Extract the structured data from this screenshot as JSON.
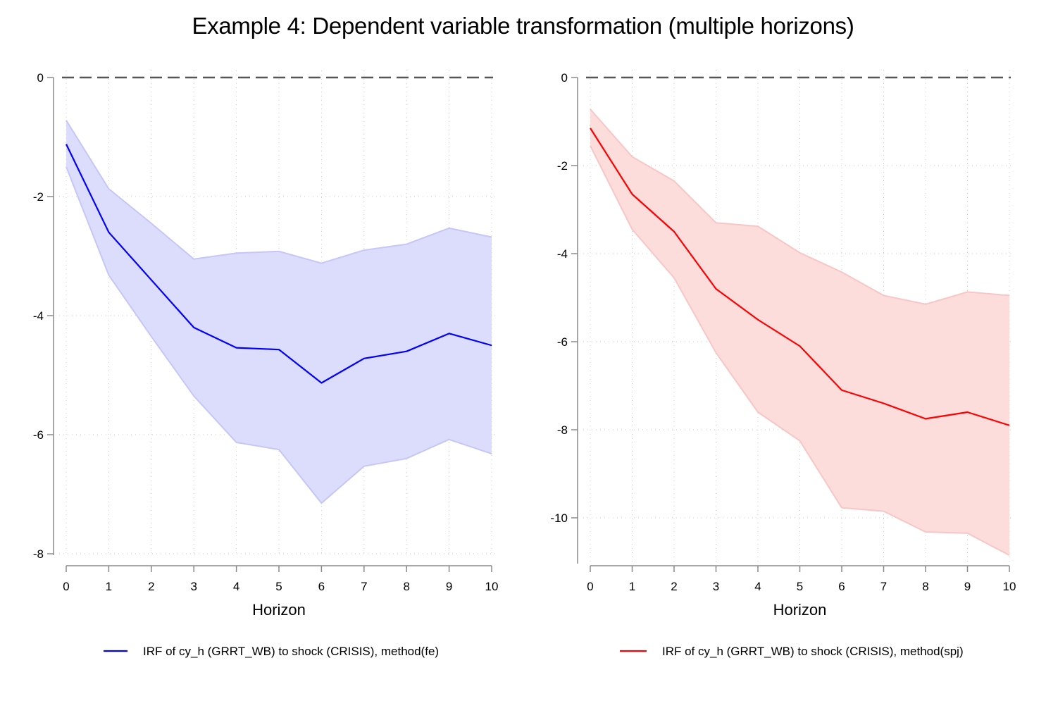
{
  "title": "Example 4: Dependent variable transformation (multiple horizons)",
  "chart_data": [
    {
      "type": "line",
      "panel": "left",
      "xlabel": "Horizon",
      "ylabel": "",
      "x": [
        0,
        1,
        2,
        3,
        4,
        5,
        6,
        7,
        8,
        9,
        10
      ],
      "xticks": [
        "0",
        "1",
        "2",
        "3",
        "4",
        "5",
        "6",
        "7",
        "8",
        "9",
        "10"
      ],
      "xlim": [
        0,
        10
      ],
      "ylim": [
        -8,
        0
      ],
      "yticks": [
        0,
        -2,
        -4,
        -6,
        -8
      ],
      "ytick_labels": [
        "0",
        "-2",
        "-4",
        "-6",
        "-8"
      ],
      "zero_line": 0,
      "grid": true,
      "color": "#0000ff",
      "band_color": "#dcdcfd",
      "band_edge_color": "#c6c6f8",
      "series": [
        {
          "name": "IRF of cy_h (GRRT_WB) to shock (CRISIS), method(fe)",
          "values": [
            -1.12,
            -2.6,
            -3.4,
            -4.2,
            -4.54,
            -4.57,
            -5.13,
            -4.72,
            -4.6,
            -4.3,
            -4.5
          ]
        }
      ],
      "band": {
        "upper": [
          -0.72,
          -1.87,
          -2.45,
          -3.05,
          -2.95,
          -2.92,
          -3.12,
          -2.9,
          -2.8,
          -2.53,
          -2.68
        ],
        "lower": [
          -1.5,
          -3.32,
          -4.35,
          -5.35,
          -6.13,
          -6.25,
          -7.15,
          -6.53,
          -6.4,
          -6.08,
          -6.32
        ]
      },
      "legend_label": "IRF of cy_h (GRRT_WB) to shock (CRISIS), method(fe)"
    },
    {
      "type": "line",
      "panel": "right",
      "xlabel": "Horizon",
      "ylabel": "",
      "x": [
        0,
        1,
        2,
        3,
        4,
        5,
        6,
        7,
        8,
        9,
        10
      ],
      "xticks": [
        "0",
        "1",
        "2",
        "3",
        "4",
        "5",
        "6",
        "7",
        "8",
        "9",
        "10"
      ],
      "xlim": [
        0,
        10
      ],
      "ylim": [
        -11,
        0
      ],
      "yticks": [
        0,
        -2,
        -4,
        -6,
        -8,
        -10
      ],
      "ytick_labels": [
        "0",
        "-2",
        "-4",
        "-6",
        "-8",
        "-10"
      ],
      "zero_line": 0,
      "grid": true,
      "color": "#ff0000",
      "band_color": "#fddcdc",
      "band_edge_color": "#f8c6c6",
      "series": [
        {
          "name": "IRF of cy_h (GRRT_WB) to shock (CRISIS), method(spj)",
          "values": [
            -1.15,
            -2.65,
            -3.5,
            -4.8,
            -5.5,
            -6.1,
            -7.1,
            -7.4,
            -7.75,
            -7.6,
            -7.9
          ]
        }
      ],
      "band": {
        "upper": [
          -0.72,
          -1.8,
          -2.35,
          -3.3,
          -3.38,
          -3.98,
          -4.42,
          -4.95,
          -5.15,
          -4.87,
          -4.95
        ],
        "lower": [
          -1.55,
          -3.45,
          -4.55,
          -6.25,
          -7.6,
          -8.25,
          -9.77,
          -9.85,
          -10.32,
          -10.35,
          -10.85
        ]
      },
      "legend_label": "IRF of cy_h (GRRT_WB) to shock (CRISIS), method(spj)"
    }
  ]
}
